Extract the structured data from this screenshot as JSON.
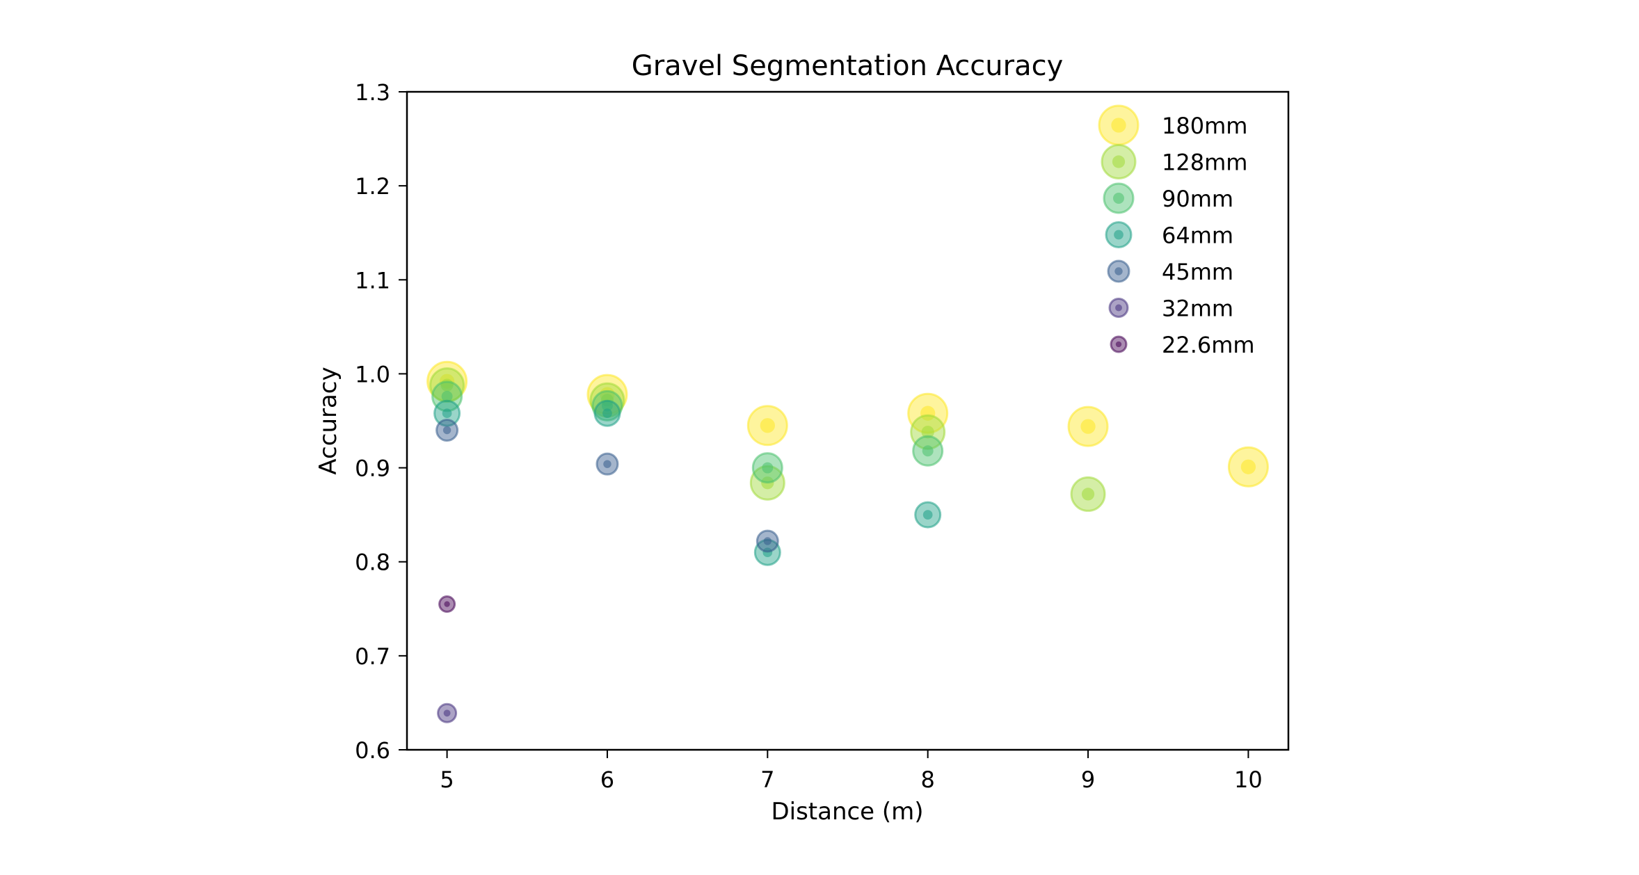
{
  "chart_data": {
    "type": "scatter",
    "title": "Gravel Segmentation Accuracy",
    "xlabel": "Distance (m)",
    "ylabel": "Accuracy",
    "xlim": [
      4.75,
      10.25
    ],
    "ylim": [
      0.6,
      1.3
    ],
    "xticks": [
      5,
      6,
      7,
      8,
      9,
      10
    ],
    "xtick_labels": [
      "5",
      "6",
      "7",
      "8",
      "9",
      "10"
    ],
    "yticks": [
      0.6,
      0.7,
      0.8,
      0.9,
      1.0,
      1.1,
      1.2,
      1.3
    ],
    "ytick_labels": [
      "0.6",
      "0.7",
      "0.8",
      "0.9",
      "1.0",
      "1.1",
      "1.2",
      "1.3"
    ],
    "grid": false,
    "legend_position": "top-right",
    "colormap": "viridis",
    "series": [
      {
        "name": "180mm",
        "color": "#fde725",
        "x": [
          5,
          6,
          7,
          8,
          9,
          10
        ],
        "y": [
          0.992,
          0.978,
          0.945,
          0.958,
          0.944,
          0.901
        ]
      },
      {
        "name": "128mm",
        "color": "#a0da39",
        "x": [
          5,
          6,
          7,
          8,
          9
        ],
        "y": [
          0.988,
          0.972,
          0.884,
          0.938,
          0.872
        ]
      },
      {
        "name": "90mm",
        "color": "#4ac16d",
        "x": [
          5,
          6,
          7,
          8
        ],
        "y": [
          0.976,
          0.966,
          0.9,
          0.918
        ]
      },
      {
        "name": "64mm",
        "color": "#1fa187",
        "x": [
          5,
          6,
          7,
          8
        ],
        "y": [
          0.958,
          0.958,
          0.81,
          0.85
        ]
      },
      {
        "name": "45mm",
        "color": "#365c8d",
        "x": [
          5,
          6,
          7
        ],
        "y": [
          0.94,
          0.904,
          0.822
        ]
      },
      {
        "name": "32mm",
        "color": "#46327e",
        "x": [
          5
        ],
        "y": [
          0.639
        ]
      },
      {
        "name": "22.6mm",
        "color": "#440154",
        "x": [
          5
        ],
        "y": [
          0.755
        ]
      }
    ]
  }
}
